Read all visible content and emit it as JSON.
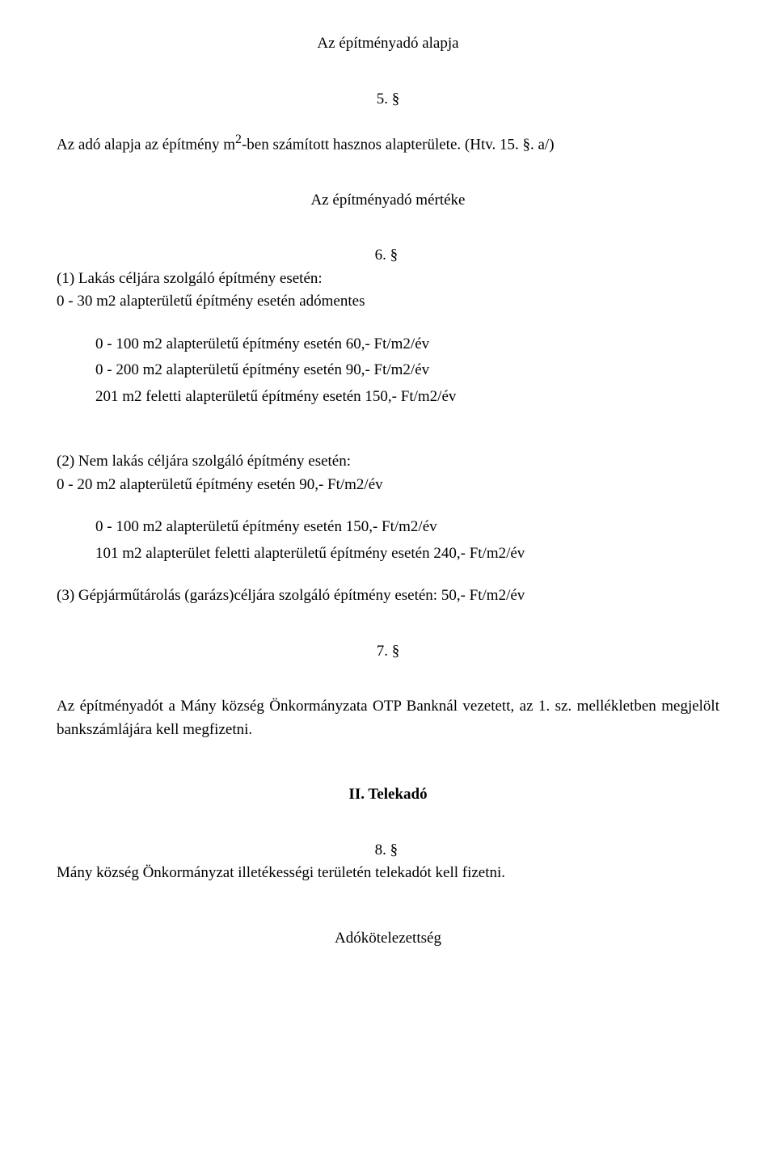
{
  "section1": {
    "title": "Az építményadó alapja",
    "num": "5. §",
    "line1_prefix": "Az adó alapja az építmény m",
    "line1_sup": "2",
    "line1_suffix": "-ben számított hasznos alapterülete. (Htv. 15. §. a/)"
  },
  "section2": {
    "title": "Az építményadó mértéke",
    "num": "6. §",
    "p1a": "(1) Lakás céljára szolgáló építmény esetén:",
    "p1b": "0 - 30 m2 alapterületű építmény esetén adómentes",
    "list1": {
      "a": "0 - 100 m2 alapterületű építmény esetén 60,- Ft/m2/év",
      "b": "0 - 200 m2 alapterületű építmény esetén 90,- Ft/m2/év",
      "c": "201 m2 feletti alapterületű építmény esetén 150,- Ft/m2/év"
    },
    "p2a": "(2) Nem lakás céljára szolgáló építmény esetén:",
    "p2b": "0 - 20 m2 alapterületű építmény esetén 90,- Ft/m2/év",
    "list2": {
      "a": "0 - 100 m2 alapterületű építmény esetén 150,- Ft/m2/év",
      "b": "101 m2 alapterület feletti alapterületű építmény esetén 240,- Ft/m2/év"
    },
    "p3": "(3) Gépjárműtárolás (garázs)céljára szolgáló építmény esetén: 50,- Ft/m2/év"
  },
  "section3": {
    "num": "7. §",
    "body": "Az építményadót a Mány község Önkormányzata OTP Banknál vezetett, az 1. sz. mellékletben megjelölt bankszámlájára kell megfizetni."
  },
  "section4": {
    "title": "II. Telekadó",
    "num": "8. §",
    "body": "Mány község Önkormányzat illetékességi területén telekadót kell fizetni."
  },
  "footer": "Adókötelezettség"
}
